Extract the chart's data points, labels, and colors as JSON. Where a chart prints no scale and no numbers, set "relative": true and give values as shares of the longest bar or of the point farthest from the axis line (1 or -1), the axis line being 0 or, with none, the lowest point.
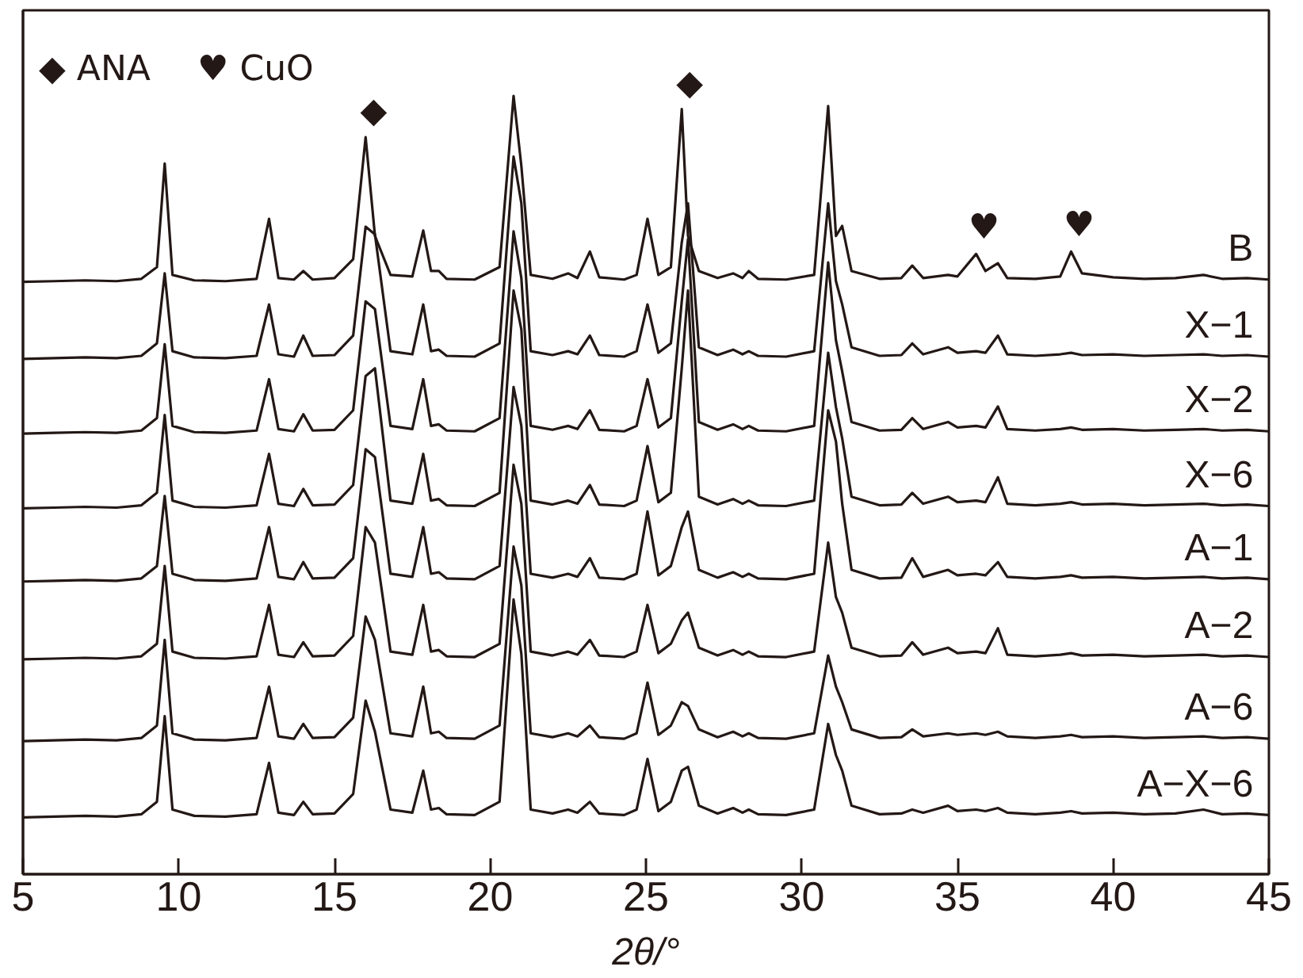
{
  "chart_data": {
    "type": "line",
    "relative": true,
    "xlabel": "2θ/°",
    "xlim": [
      5,
      45
    ],
    "xticks": [
      5,
      10,
      15,
      20,
      25,
      30,
      35,
      40,
      45
    ],
    "tick_labels": "x",
    "grid": false,
    "annotations": [
      "◆ ANA",
      "♥ CuO",
      {
        "text": "◆",
        "x": 16.0,
        "y": 0.947
      },
      {
        "text": "◆",
        "x": 26.15,
        "y": 0.983
      },
      {
        "text": "♥",
        "x": 35.6,
        "y": 0.797
      },
      {
        "text": "♥",
        "x": 38.65,
        "y": 0.8
      }
    ],
    "x": [
      5,
      6,
      7,
      8,
      8.8,
      9.3,
      9.55,
      9.8,
      10.5,
      11.5,
      12.5,
      12.9,
      13.2,
      13.7,
      14.0,
      14.3,
      15.0,
      15.6,
      16.0,
      16.3,
      16.8,
      17.5,
      17.85,
      18.1,
      18.35,
      18.6,
      19.5,
      20.3,
      20.75,
      21.0,
      21.3,
      22.0,
      22.5,
      22.8,
      23.2,
      23.5,
      24.3,
      24.7,
      25.05,
      25.4,
      25.8,
      26.15,
      26.35,
      26.7,
      27.3,
      27.8,
      28.1,
      28.3,
      28.6,
      29.5,
      30.4,
      30.85,
      31.1,
      31.3,
      31.6,
      32.5,
      33.2,
      33.55,
      33.9,
      34.7,
      35.0,
      35.6,
      35.9,
      36.3,
      36.6,
      37.5,
      38.3,
      38.65,
      39.0,
      40.0,
      41.0,
      42.0,
      42.9,
      43.5,
      44.3,
      45
    ],
    "series": [
      {
        "name": "B",
        "color": "#231815",
        "values": [
          0.761,
          0.762,
          0.763,
          0.762,
          0.765,
          0.78,
          0.913,
          0.77,
          0.763,
          0.762,
          0.765,
          0.842,
          0.766,
          0.764,
          0.775,
          0.764,
          0.766,
          0.79,
          0.947,
          0.82,
          0.77,
          0.768,
          0.827,
          0.775,
          0.775,
          0.765,
          0.764,
          0.78,
          1.0,
          0.91,
          0.77,
          0.765,
          0.772,
          0.766,
          0.8,
          0.767,
          0.764,
          0.77,
          0.842,
          0.77,
          0.78,
          0.983,
          0.82,
          0.775,
          0.766,
          0.772,
          0.766,
          0.775,
          0.765,
          0.764,
          0.77,
          0.987,
          0.82,
          0.833,
          0.775,
          0.765,
          0.766,
          0.782,
          0.766,
          0.77,
          0.768,
          0.797,
          0.775,
          0.785,
          0.766,
          0.765,
          0.768,
          0.8,
          0.772,
          0.767,
          0.765,
          0.766,
          0.77,
          0.765,
          0.766,
          0.764
        ]
      },
      {
        "name": "X−1",
        "color": "#231815",
        "values": [
          0.662,
          0.663,
          0.664,
          0.663,
          0.666,
          0.682,
          0.772,
          0.672,
          0.664,
          0.663,
          0.666,
          0.732,
          0.668,
          0.665,
          0.692,
          0.666,
          0.667,
          0.692,
          0.832,
          0.822,
          0.672,
          0.668,
          0.732,
          0.672,
          0.674,
          0.666,
          0.665,
          0.682,
          0.922,
          0.862,
          0.672,
          0.667,
          0.672,
          0.668,
          0.692,
          0.667,
          0.665,
          0.672,
          0.732,
          0.67,
          0.682,
          0.812,
          0.862,
          0.677,
          0.667,
          0.674,
          0.668,
          0.672,
          0.666,
          0.665,
          0.672,
          0.862,
          0.762,
          0.732,
          0.677,
          0.666,
          0.667,
          0.682,
          0.668,
          0.677,
          0.67,
          0.672,
          0.67,
          0.692,
          0.668,
          0.666,
          0.668,
          0.67,
          0.667,
          0.668,
          0.666,
          0.667,
          0.668,
          0.666,
          0.667,
          0.665
        ]
      },
      {
        "name": "X−2",
        "color": "#231815",
        "values": [
          0.566,
          0.567,
          0.568,
          0.567,
          0.57,
          0.586,
          0.681,
          0.576,
          0.568,
          0.567,
          0.57,
          0.636,
          0.572,
          0.569,
          0.591,
          0.57,
          0.571,
          0.596,
          0.736,
          0.726,
          0.576,
          0.572,
          0.636,
          0.576,
          0.578,
          0.57,
          0.569,
          0.586,
          0.826,
          0.766,
          0.576,
          0.571,
          0.576,
          0.572,
          0.596,
          0.571,
          0.569,
          0.576,
          0.636,
          0.574,
          0.586,
          0.736,
          0.816,
          0.581,
          0.571,
          0.578,
          0.572,
          0.576,
          0.57,
          0.569,
          0.576,
          0.786,
          0.686,
          0.646,
          0.581,
          0.57,
          0.571,
          0.586,
          0.572,
          0.581,
          0.574,
          0.576,
          0.574,
          0.601,
          0.572,
          0.57,
          0.572,
          0.574,
          0.571,
          0.572,
          0.57,
          0.571,
          0.572,
          0.57,
          0.571,
          0.569
        ]
      },
      {
        "name": "X−6",
        "color": "#231815",
        "values": [
          0.47,
          0.471,
          0.472,
          0.471,
          0.474,
          0.49,
          0.59,
          0.48,
          0.472,
          0.471,
          0.474,
          0.54,
          0.476,
          0.473,
          0.495,
          0.474,
          0.475,
          0.5,
          0.64,
          0.65,
          0.48,
          0.476,
          0.54,
          0.48,
          0.482,
          0.474,
          0.473,
          0.49,
          0.75,
          0.7,
          0.48,
          0.475,
          0.48,
          0.476,
          0.5,
          0.475,
          0.473,
          0.48,
          0.55,
          0.478,
          0.49,
          0.65,
          0.75,
          0.485,
          0.475,
          0.482,
          0.476,
          0.48,
          0.474,
          0.473,
          0.48,
          0.67,
          0.6,
          0.56,
          0.485,
          0.474,
          0.475,
          0.49,
          0.476,
          0.485,
          0.478,
          0.48,
          0.478,
          0.51,
          0.476,
          0.474,
          0.476,
          0.478,
          0.475,
          0.476,
          0.474,
          0.475,
          0.476,
          0.474,
          0.475,
          0.473
        ]
      },
      {
        "name": "A−1",
        "color": "#231815",
        "values": [
          0.376,
          0.377,
          0.378,
          0.377,
          0.38,
          0.396,
          0.486,
          0.386,
          0.378,
          0.377,
          0.38,
          0.446,
          0.382,
          0.379,
          0.401,
          0.38,
          0.381,
          0.406,
          0.546,
          0.536,
          0.386,
          0.382,
          0.446,
          0.386,
          0.388,
          0.38,
          0.379,
          0.396,
          0.626,
          0.576,
          0.386,
          0.381,
          0.386,
          0.382,
          0.406,
          0.381,
          0.379,
          0.386,
          0.466,
          0.384,
          0.396,
          0.446,
          0.466,
          0.391,
          0.381,
          0.388,
          0.382,
          0.386,
          0.38,
          0.379,
          0.386,
          0.596,
          0.556,
          0.476,
          0.391,
          0.38,
          0.381,
          0.406,
          0.382,
          0.391,
          0.384,
          0.386,
          0.384,
          0.401,
          0.382,
          0.38,
          0.382,
          0.384,
          0.381,
          0.382,
          0.38,
          0.381,
          0.382,
          0.38,
          0.381,
          0.379
        ]
      },
      {
        "name": "A−2",
        "color": "#231815",
        "values": [
          0.276,
          0.277,
          0.278,
          0.277,
          0.28,
          0.296,
          0.396,
          0.286,
          0.278,
          0.277,
          0.28,
          0.346,
          0.282,
          0.279,
          0.298,
          0.28,
          0.281,
          0.306,
          0.446,
          0.426,
          0.286,
          0.282,
          0.346,
          0.286,
          0.288,
          0.28,
          0.279,
          0.296,
          0.526,
          0.476,
          0.286,
          0.281,
          0.286,
          0.282,
          0.301,
          0.281,
          0.279,
          0.286,
          0.346,
          0.284,
          0.296,
          0.326,
          0.336,
          0.291,
          0.281,
          0.288,
          0.282,
          0.286,
          0.28,
          0.279,
          0.286,
          0.426,
          0.356,
          0.336,
          0.291,
          0.28,
          0.281,
          0.298,
          0.282,
          0.291,
          0.284,
          0.286,
          0.284,
          0.316,
          0.282,
          0.28,
          0.282,
          0.284,
          0.281,
          0.282,
          0.28,
          0.281,
          0.282,
          0.28,
          0.281,
          0.279
        ]
      },
      {
        "name": "A−6",
        "color": "#231815",
        "values": [
          0.171,
          0.172,
          0.173,
          0.172,
          0.175,
          0.191,
          0.301,
          0.181,
          0.173,
          0.172,
          0.175,
          0.241,
          0.177,
          0.174,
          0.193,
          0.175,
          0.176,
          0.201,
          0.331,
          0.301,
          0.181,
          0.177,
          0.241,
          0.181,
          0.183,
          0.175,
          0.174,
          0.191,
          0.421,
          0.371,
          0.181,
          0.176,
          0.181,
          0.177,
          0.191,
          0.176,
          0.174,
          0.181,
          0.246,
          0.179,
          0.191,
          0.221,
          0.216,
          0.186,
          0.176,
          0.183,
          0.177,
          0.181,
          0.175,
          0.174,
          0.181,
          0.281,
          0.241,
          0.221,
          0.186,
          0.175,
          0.176,
          0.186,
          0.177,
          0.181,
          0.179,
          0.181,
          0.179,
          0.183,
          0.177,
          0.175,
          0.177,
          0.179,
          0.176,
          0.177,
          0.175,
          0.176,
          0.177,
          0.175,
          0.176,
          0.174
        ]
      },
      {
        "name": "A−X−6",
        "color": "#231815",
        "values": [
          0.073,
          0.074,
          0.075,
          0.074,
          0.077,
          0.093,
          0.203,
          0.083,
          0.075,
          0.074,
          0.077,
          0.143,
          0.079,
          0.076,
          0.093,
          0.077,
          0.078,
          0.103,
          0.223,
          0.183,
          0.083,
          0.079,
          0.133,
          0.083,
          0.085,
          0.077,
          0.076,
          0.093,
          0.353,
          0.283,
          0.083,
          0.078,
          0.083,
          0.079,
          0.093,
          0.078,
          0.076,
          0.083,
          0.148,
          0.081,
          0.093,
          0.133,
          0.138,
          0.088,
          0.078,
          0.085,
          0.079,
          0.083,
          0.077,
          0.076,
          0.083,
          0.193,
          0.153,
          0.133,
          0.088,
          0.077,
          0.078,
          0.083,
          0.079,
          0.088,
          0.081,
          0.083,
          0.081,
          0.085,
          0.079,
          0.077,
          0.079,
          0.081,
          0.078,
          0.079,
          0.077,
          0.078,
          0.083,
          0.077,
          0.078,
          0.076
        ]
      }
    ]
  }
}
